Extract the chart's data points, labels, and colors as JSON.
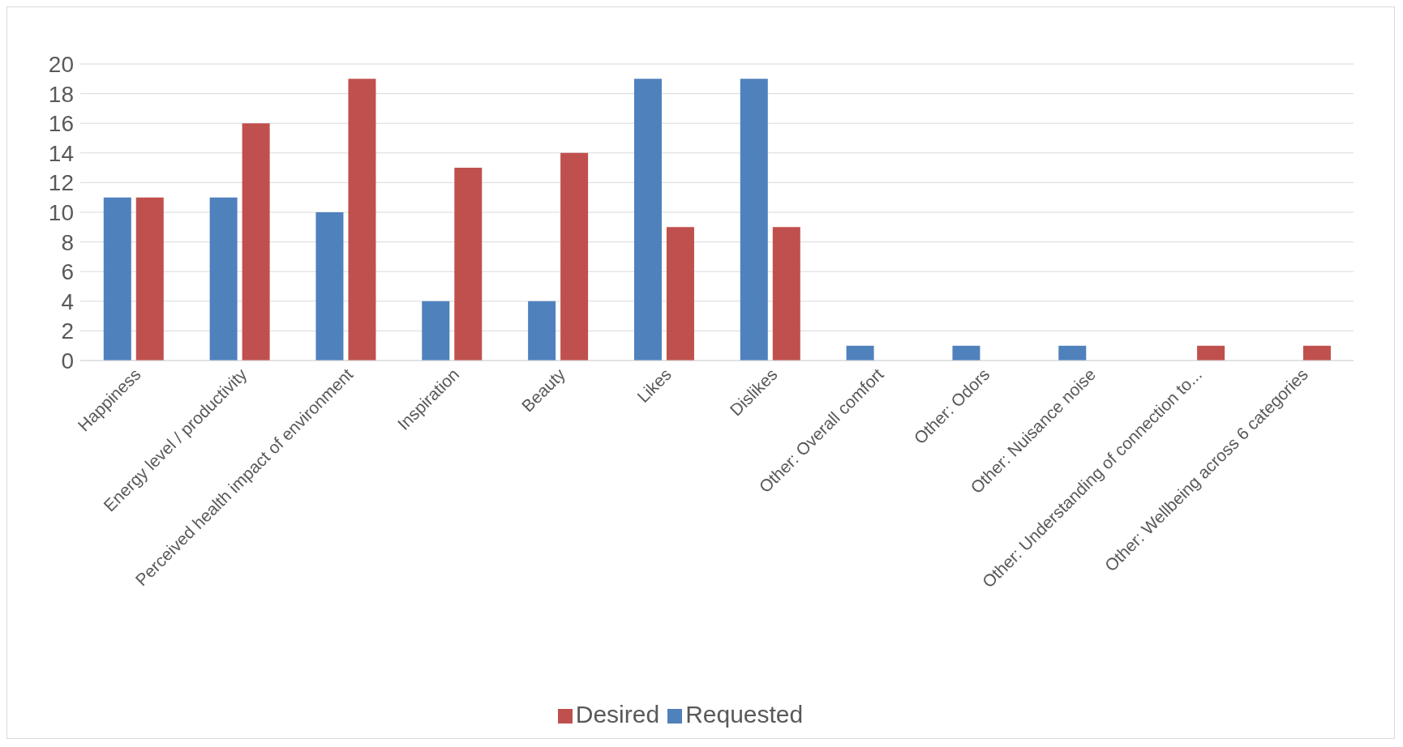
{
  "chart_data": {
    "type": "bar",
    "categories": [
      "Happiness",
      "Energy level / productivity",
      "Perceived health impact of environment",
      "Inspiration",
      "Beauty",
      "Likes",
      "Dislikes",
      "Other: Overall comfort",
      "Other: Odors",
      "Other: Nuisance noise",
      "Other: Understanding of connection to...",
      "Other: Wellbeing across 6 categories"
    ],
    "series": [
      {
        "name": "Requested",
        "color": "#4f81bd",
        "values": [
          11,
          11,
          10,
          4,
          4,
          19,
          19,
          1,
          1,
          1,
          null,
          null
        ]
      },
      {
        "name": "Desired",
        "color": "#c0504d",
        "values": [
          11,
          16,
          19,
          13,
          14,
          9,
          9,
          null,
          null,
          null,
          1,
          1
        ]
      }
    ],
    "ylim": [
      0,
      20
    ],
    "yticks": [
      0,
      2,
      4,
      6,
      8,
      10,
      12,
      14,
      16,
      18,
      20
    ],
    "grid": "y",
    "legend": "bottom"
  }
}
